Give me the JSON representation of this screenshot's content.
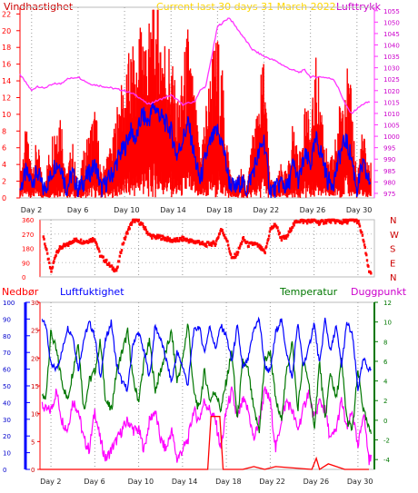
{
  "header": {
    "wind_label": "Vindhastighet",
    "title": "Current last 30 days 31 March 2022",
    "pressure_label": "Lufttrykk"
  },
  "colors": {
    "wind": "#ff0000",
    "wind_avg": "#0000ff",
    "pressure": "#ff33ff",
    "direction": "#ff0000",
    "rain": "#ff0000",
    "humidity": "#0000ff",
    "temperature": "#007700",
    "dewpoint": "#ff00ff",
    "title": "#ffd700"
  },
  "chart_data": [
    {
      "type": "line",
      "panel": "wind-pressure",
      "title": "Current last 30 days 31 March 2022",
      "x_tick_labels": [
        "Day 2",
        "Day 6",
        "Day 10",
        "Day 14",
        "Day 18",
        "Day 22",
        "Day 26",
        "Day 30"
      ],
      "x_tick_days": [
        2,
        6,
        10,
        14,
        18,
        22,
        26,
        30
      ],
      "xlim": [
        1,
        31.5
      ],
      "y_left": {
        "label": "Vindhastighet",
        "ticks": [
          0,
          2,
          4,
          6,
          8,
          10,
          12,
          14,
          16,
          18,
          20,
          22
        ],
        "lim": [
          0,
          22.8
        ]
      },
      "y_right": {
        "label": "Lufttrykk",
        "ticks": [
          975,
          980,
          985,
          990,
          995,
          1000,
          1005,
          1010,
          1015,
          1020,
          1025,
          1030,
          1035,
          1040,
          1045,
          1050,
          1055
        ],
        "lim": [
          973,
          1056.5
        ]
      },
      "series": [
        {
          "name": "Vindhastighet",
          "axis": "left",
          "envelope": true,
          "x": [
            1.0,
            1.5,
            2.0,
            2.5,
            3.0,
            3.5,
            4.0,
            4.5,
            5.0,
            5.5,
            6.0,
            6.5,
            7.0,
            7.5,
            8.0,
            8.5,
            9.0,
            9.5,
            10.0,
            10.5,
            11.0,
            11.5,
            12.0,
            12.5,
            13.0,
            13.5,
            14.0,
            14.5,
            15.0,
            15.5,
            16.0,
            16.5,
            17.0,
            17.5,
            18.0,
            18.5,
            19.0,
            19.5,
            20.0,
            20.5,
            21.0,
            21.5,
            22.0,
            22.5,
            23.0,
            23.5,
            24.0,
            24.5,
            25.0,
            25.5,
            26.0,
            26.5,
            27.0,
            27.5,
            28.0,
            28.5,
            29.0,
            29.5,
            30.0,
            30.5,
            31.0
          ],
          "values": [
            2,
            6,
            3,
            5,
            1,
            4,
            7,
            8,
            2,
            5,
            1,
            4,
            6,
            8,
            2,
            4,
            5,
            9,
            10,
            13,
            12,
            17,
            14,
            18,
            16,
            14,
            13,
            8,
            11,
            15,
            9,
            4,
            8,
            12,
            14,
            10,
            3,
            1,
            3,
            1,
            5,
            9,
            12,
            2,
            1,
            3,
            2,
            7,
            3,
            9,
            6,
            12,
            8,
            3,
            4,
            8,
            12,
            9,
            2,
            6,
            3
          ]
        },
        {
          "name": "Vindhastighet middel",
          "axis": "left",
          "x": [
            1.0,
            1.5,
            2.0,
            2.5,
            3.0,
            3.5,
            4.0,
            4.5,
            5.0,
            5.5,
            6.0,
            6.5,
            7.0,
            7.5,
            8.0,
            8.5,
            9.0,
            9.5,
            10.0,
            10.5,
            11.0,
            11.5,
            12.0,
            12.5,
            13.0,
            13.5,
            14.0,
            14.5,
            15.0,
            15.5,
            16.0,
            16.5,
            17.0,
            17.5,
            18.0,
            18.5,
            19.0,
            19.5,
            20.0,
            20.5,
            21.0,
            21.5,
            22.0,
            22.5,
            23.0,
            23.5,
            24.0,
            24.5,
            25.0,
            25.5,
            26.0,
            26.5,
            27.0,
            27.5,
            28.0,
            28.5,
            29.0,
            29.5,
            30.0,
            30.5,
            31.0
          ],
          "values": [
            1,
            3,
            2,
            3,
            1,
            2,
            4,
            4,
            1,
            3,
            1,
            2,
            3,
            4,
            1,
            2,
            3,
            5,
            6,
            8,
            7,
            10,
            9,
            11,
            10,
            9,
            8,
            5,
            7,
            9,
            5,
            2,
            5,
            7,
            8,
            6,
            2,
            1,
            2,
            1,
            3,
            5,
            7,
            1,
            1,
            2,
            1,
            4,
            2,
            5,
            4,
            7,
            5,
            2,
            2,
            5,
            7,
            5,
            1,
            4,
            2
          ]
        },
        {
          "name": "Lufttrykk",
          "axis": "right",
          "x": [
            1.0,
            2.0,
            2.5,
            3.0,
            4.0,
            4.5,
            5.0,
            6.0,
            7.0,
            8.0,
            9.0,
            10.0,
            10.5,
            11.0,
            12.0,
            13.0,
            14.0,
            15.0,
            16.0,
            16.5,
            17.0,
            17.5,
            18.0,
            18.5,
            19.0,
            20.0,
            21.0,
            22.0,
            23.0,
            24.0,
            25.0,
            25.5,
            26.0,
            27.0,
            28.0,
            28.5,
            29.0,
            29.5,
            30.0,
            30.5,
            31.0
          ],
          "values": [
            1027,
            1020,
            1022,
            1021,
            1023,
            1023,
            1025,
            1026,
            1023,
            1022,
            1021,
            1020,
            1019,
            1018,
            1014,
            1016,
            1018,
            1014,
            1015,
            1020,
            1022,
            1035,
            1048,
            1050,
            1052,
            1045,
            1038,
            1035,
            1033,
            1030,
            1028,
            1029,
            1026,
            1026,
            1025,
            1020,
            1014,
            1010,
            1012,
            1014,
            1015
          ]
        }
      ]
    },
    {
      "type": "scatter",
      "panel": "wind-direction",
      "x_tick_labels": [
        "Day 2",
        "Day 6",
        "Day 10",
        "Day 14",
        "Day 18",
        "Day 22",
        "Day 26",
        "Day 30"
      ],
      "xlim": [
        1,
        31.5
      ],
      "y_left": {
        "ticks": [
          0,
          90,
          180,
          270,
          360
        ],
        "lim": [
          0,
          360
        ]
      },
      "compass_labels": [
        "N",
        "W",
        "S",
        "E",
        "N"
      ],
      "series": [
        {
          "name": "Vindretning",
          "x": [
            1,
            2,
            2.5,
            3,
            3.5,
            4,
            4.5,
            5,
            5.5,
            6,
            6.5,
            7,
            7.5,
            8,
            8.5,
            9,
            9.5,
            10,
            10.5,
            11,
            11.5,
            12,
            12.5,
            13,
            13.5,
            14,
            14.5,
            15,
            15.5,
            16,
            16.5,
            17,
            17.5,
            18,
            18.5,
            19,
            19.5,
            20,
            20.5,
            21,
            21.5,
            22,
            22.5,
            23,
            23.5,
            24,
            24.5,
            25,
            25.5,
            26,
            26.5,
            27,
            27.5,
            28,
            28.5,
            29,
            29.5,
            30,
            30.5,
            31
          ],
          "values": [
            350,
            30,
            160,
            190,
            200,
            230,
            230,
            220,
            230,
            240,
            130,
            100,
            60,
            40,
            200,
            290,
            360,
            350,
            310,
            260,
            250,
            250,
            240,
            230,
            230,
            240,
            230,
            220,
            220,
            200,
            210,
            210,
            300,
            240,
            110,
            150,
            240,
            200,
            210,
            190,
            150,
            300,
            330,
            240,
            250,
            320,
            355,
            350,
            350,
            355,
            340,
            350,
            355,
            350,
            345,
            350,
            360,
            350,
            230,
            30
          ]
        }
      ]
    },
    {
      "type": "line",
      "panel": "rain-humidity-temperature",
      "x_tick_labels": [
        "Day 2",
        "Day 6",
        "Day 10",
        "Day 14",
        "Day 18",
        "Day 22",
        "Day 26",
        "Day 30"
      ],
      "xlim": [
        1,
        31.5
      ],
      "legend": [
        "Nedbør",
        "Luftfuktighet",
        "Temperatur",
        "Duggpunkt"
      ],
      "y_axes": {
        "nedbor": {
          "label": "Nedbør",
          "ticks": [
            0,
            10,
            20,
            30,
            40,
            50,
            60,
            70,
            80,
            90,
            100
          ],
          "lim": [
            0,
            100
          ]
        },
        "luftfuktighet": {
          "label": "Luftfuktighet",
          "ticks": [
            0,
            5,
            10,
            15,
            20,
            25,
            30
          ],
          "lim": [
            0,
            30
          ]
        },
        "temperatur": {
          "label": "Temperatur",
          "ticks": [
            -4,
            -2,
            0,
            2,
            4,
            6,
            8,
            10,
            12
          ],
          "lim": [
            -5,
            12
          ]
        }
      },
      "series": [
        {
          "name": "Nedbør",
          "axis": "luftfuktighet",
          "x": [
            1,
            16.3,
            16.6,
            17.4,
            17.7,
            19.5,
            20.5,
            21.5,
            22.5,
            25.8,
            26.2,
            26.5,
            27.3,
            28.8,
            31
          ],
          "values": [
            0,
            0,
            9.5,
            9.5,
            0,
            0,
            0.5,
            0,
            0.5,
            0,
            2,
            0,
            1,
            0,
            0
          ]
        },
        {
          "name": "Luftfuktighet",
          "axis": "nedbor",
          "x": [
            1,
            1.5,
            2,
            2.5,
            3,
            3.5,
            4,
            4.5,
            5,
            5.5,
            6,
            6.5,
            7,
            7.5,
            8,
            8.5,
            9,
            9.5,
            10,
            10.5,
            11,
            11.5,
            12,
            12.5,
            13,
            13.5,
            14,
            14.5,
            15,
            15.5,
            16,
            16.5,
            17,
            17.5,
            18,
            18.5,
            19,
            19.5,
            20,
            20.5,
            21,
            21.5,
            22,
            22.5,
            23,
            23.5,
            24,
            24.5,
            25,
            25.5,
            26,
            26.5,
            27,
            27.5,
            28,
            28.5,
            29,
            29.5,
            30,
            30.5,
            31
          ],
          "values": [
            92,
            88,
            62,
            60,
            70,
            85,
            80,
            60,
            78,
            88,
            80,
            55,
            78,
            88,
            62,
            52,
            48,
            76,
            82,
            70,
            55,
            86,
            78,
            66,
            52,
            70,
            62,
            50,
            82,
            86,
            70,
            86,
            72,
            86,
            80,
            64,
            86,
            60,
            66,
            84,
            90,
            62,
            58,
            82,
            90,
            70,
            54,
            88,
            62,
            72,
            88,
            62,
            90,
            70,
            86,
            62,
            88,
            80,
            48,
            66,
            60
          ]
        },
        {
          "name": "Temperatur",
          "axis": "temperatur",
          "x": [
            1,
            1.5,
            2,
            2.5,
            3,
            3.5,
            4,
            4.5,
            5,
            5.5,
            6,
            6.5,
            7,
            7.5,
            8,
            8.5,
            9,
            9.5,
            10,
            10.5,
            11,
            11.5,
            12,
            12.5,
            13,
            13.5,
            14,
            14.5,
            15,
            15.5,
            16,
            16.5,
            17,
            17.5,
            18,
            18.5,
            19,
            19.5,
            20,
            20.5,
            21,
            21.5,
            22,
            22.5,
            23,
            23.5,
            24,
            24.5,
            25,
            25.5,
            26,
            26.5,
            27,
            27.5,
            28,
            28.5,
            29,
            29.5,
            30,
            30.5,
            31
          ],
          "values": [
            3,
            2,
            9,
            7,
            4,
            2,
            5,
            8,
            1,
            4,
            5,
            8,
            2,
            1,
            5,
            7,
            9,
            4,
            2,
            6,
            8,
            3,
            5,
            7,
            9,
            4,
            6,
            10,
            3,
            1,
            5,
            2,
            3,
            1,
            4,
            7,
            0,
            6,
            5,
            1,
            -1,
            6,
            7,
            2,
            0,
            5,
            8,
            1,
            6,
            4,
            -1,
            6,
            0,
            5,
            2,
            6,
            0,
            -1,
            5,
            1,
            -1
          ]
        },
        {
          "name": "Duggpunkt",
          "axis": "temperatur",
          "x": [
            1,
            1.5,
            2,
            2.5,
            3,
            3.5,
            4,
            4.5,
            5,
            5.5,
            6,
            6.5,
            7,
            7.5,
            8,
            8.5,
            9,
            9.5,
            10,
            10.5,
            11,
            11.5,
            12,
            12.5,
            13,
            13.5,
            14,
            14.5,
            15,
            15.5,
            16,
            16.5,
            17,
            17.5,
            18,
            18.5,
            19,
            19.5,
            20,
            20.5,
            21,
            21.5,
            22,
            22.5,
            23,
            23.5,
            24,
            24.5,
            25,
            25.5,
            26,
            26.5,
            27,
            27.5,
            28,
            28.5,
            29,
            29.5,
            30,
            30.5,
            31
          ],
          "values": [
            2,
            1,
            1,
            3,
            0,
            -1,
            2,
            1,
            -2,
            -3,
            1,
            -2,
            -4,
            -3,
            -2,
            -1,
            0,
            -1,
            -1,
            -3,
            0,
            1,
            -2,
            -3,
            -1,
            -4,
            -3,
            -2,
            1,
            0,
            2,
            1,
            0,
            -3,
            1,
            3,
            0,
            2,
            1,
            -2,
            0,
            3,
            2,
            -3,
            0,
            2,
            1,
            -1,
            1,
            3,
            0,
            2,
            1,
            -2,
            -1,
            2,
            -1,
            1,
            -3,
            1,
            -4
          ]
        }
      ]
    }
  ]
}
